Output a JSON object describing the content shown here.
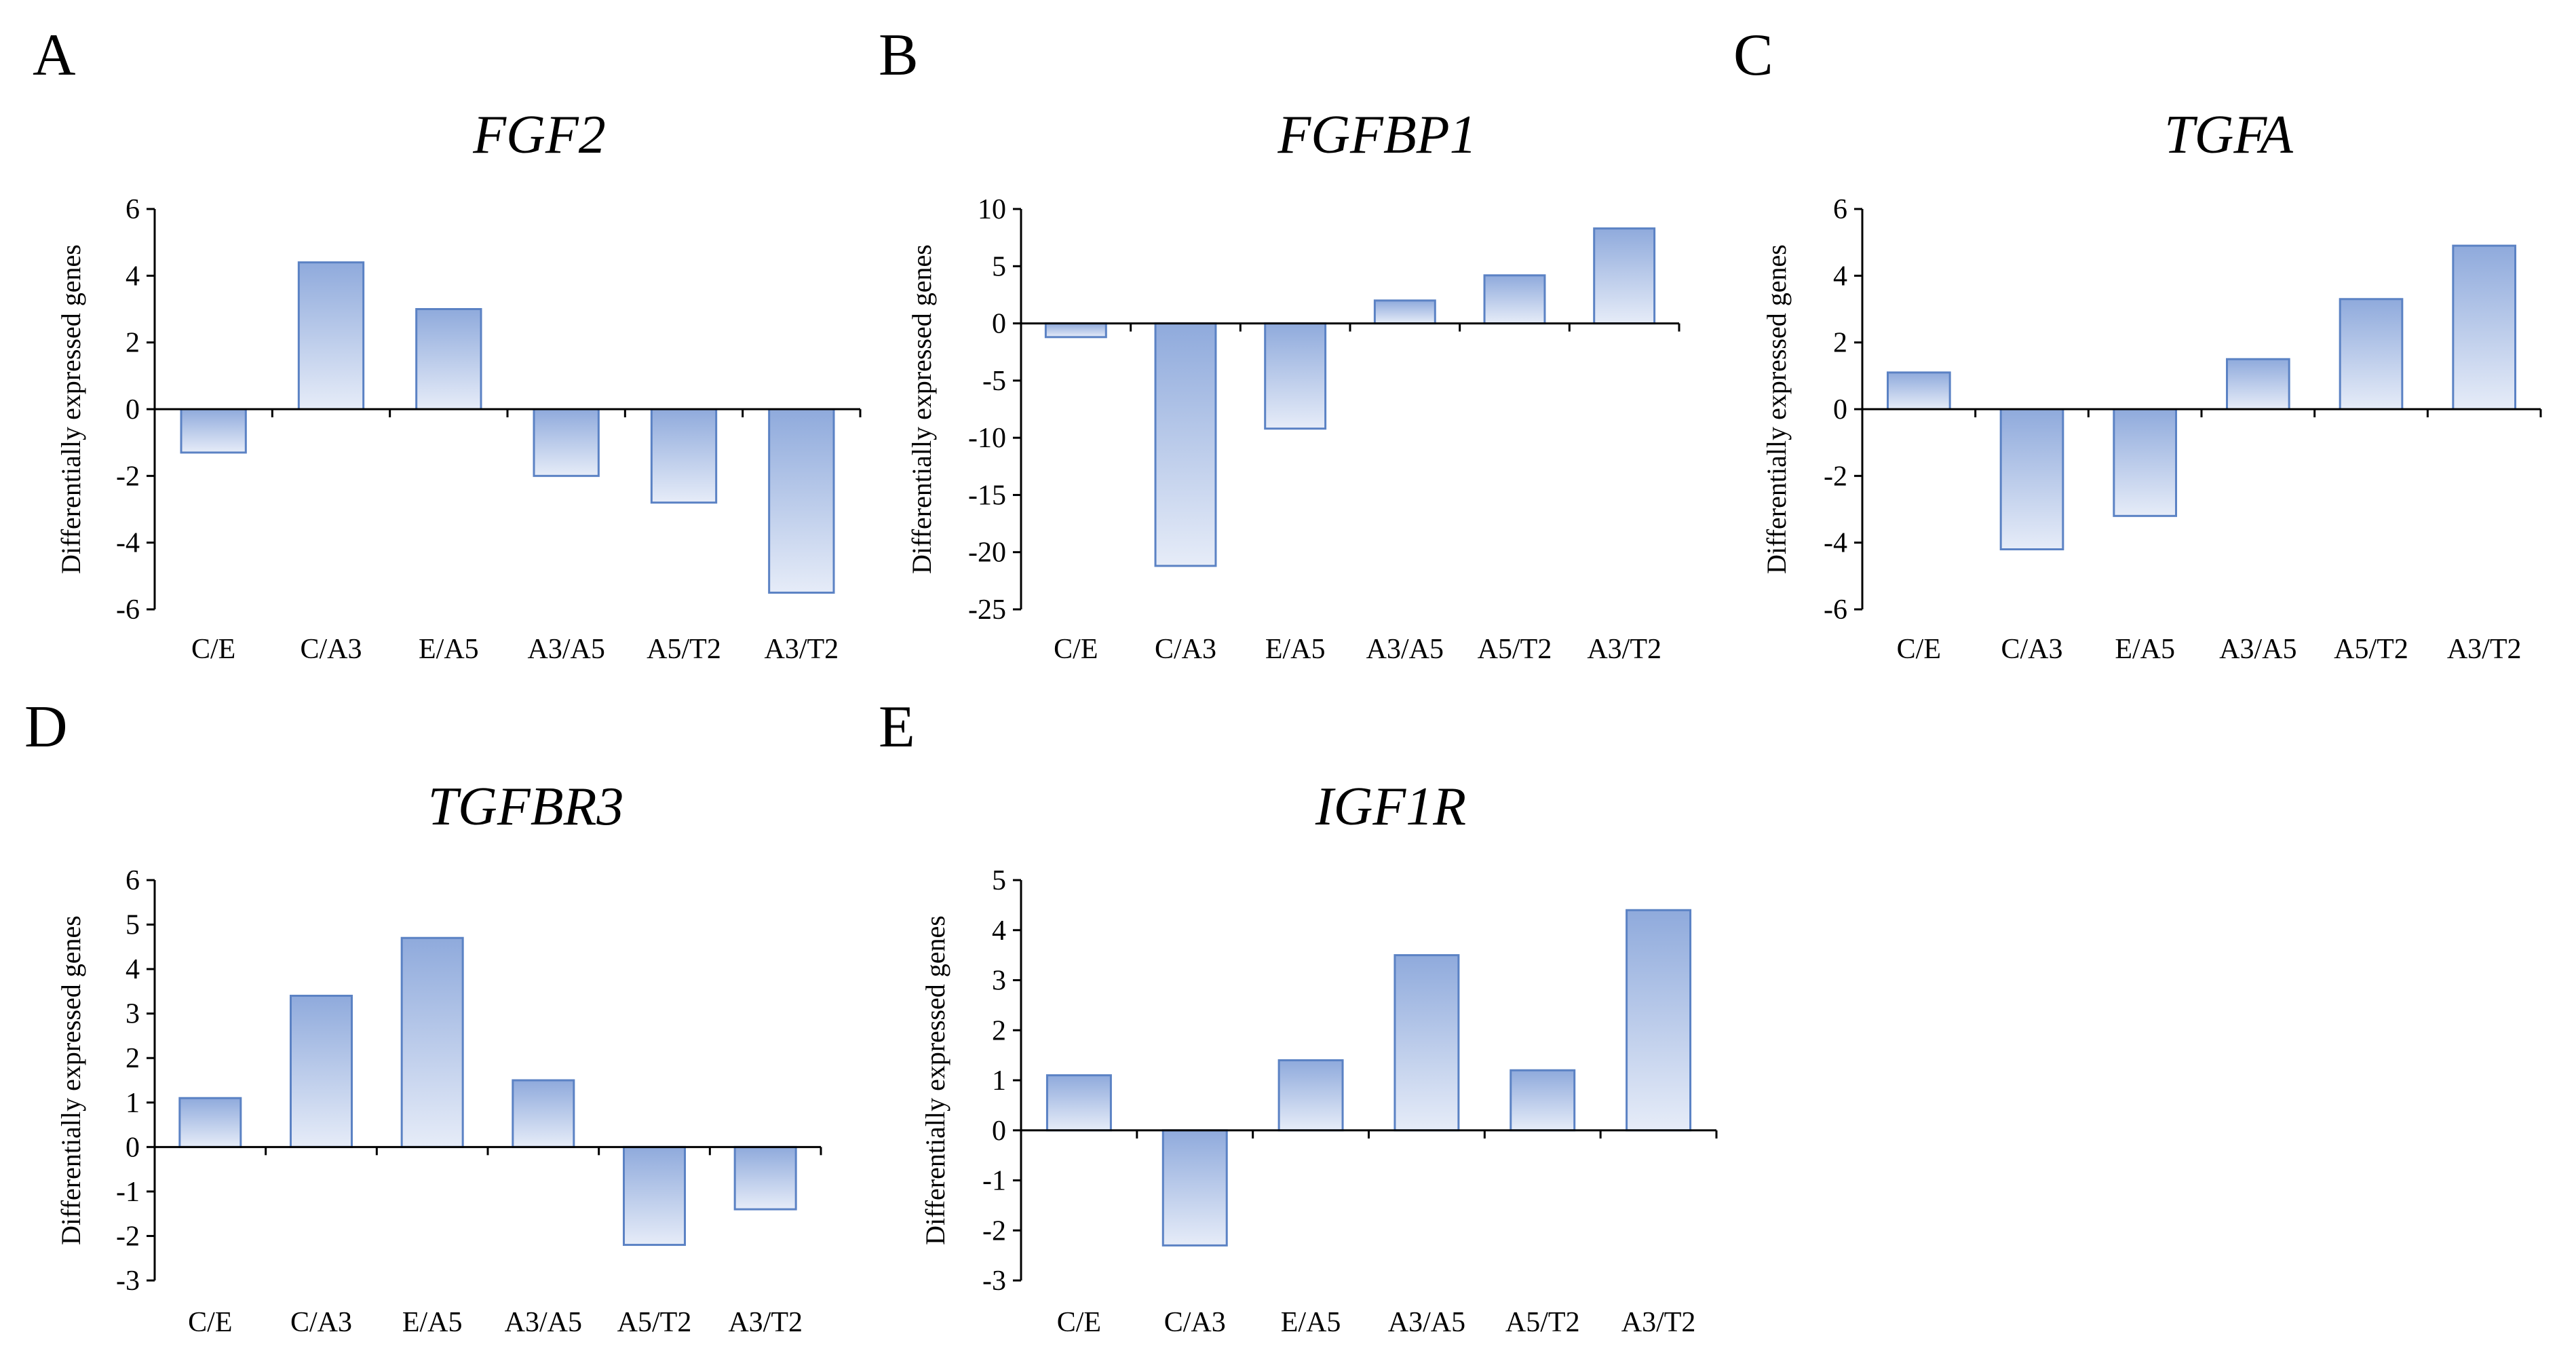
{
  "colors": {
    "bar_dark": "#8faadc",
    "bar_light": "#e6ecf8",
    "bar_stroke": "#5b82c4",
    "axis": "#000000"
  },
  "chart_data": [
    {
      "panel": "A",
      "type": "bar",
      "title": "FGF2",
      "ylabel": "Differentially expressed genes",
      "xlabel": "",
      "categories": [
        "C/E",
        "C/A3",
        "E/A5",
        "A3/A5",
        "A5/T2",
        "A3/T2"
      ],
      "values": [
        -1.3,
        4.4,
        3.0,
        -2.0,
        -2.8,
        -5.5
      ],
      "ylim": [
        -6,
        6
      ],
      "yticks": [
        6,
        4,
        2,
        0,
        -2,
        -4,
        -6
      ]
    },
    {
      "panel": "B",
      "type": "bar",
      "title": "FGFBP1",
      "ylabel": "Differentially expressed genes",
      "xlabel": "",
      "categories": [
        "C/E",
        "C/A3",
        "E/A5",
        "A3/A5",
        "A5/T2",
        "A3/T2"
      ],
      "values": [
        -1.2,
        -21.2,
        -9.2,
        2.0,
        4.2,
        8.3
      ],
      "ylim": [
        -25,
        10
      ],
      "yticks": [
        10,
        5,
        0,
        -5,
        -10,
        -15,
        -20,
        -25
      ]
    },
    {
      "panel": "C",
      "type": "bar",
      "title": "TGFA",
      "ylabel": "Differentially expressed genes",
      "xlabel": "",
      "categories": [
        "C/E",
        "C/A3",
        "E/A5",
        "A3/A5",
        "A5/T2",
        "A3/T2"
      ],
      "values": [
        1.1,
        -4.2,
        -3.2,
        1.5,
        3.3,
        4.9
      ],
      "ylim": [
        -6,
        6
      ],
      "yticks": [
        6,
        4,
        2,
        0,
        -2,
        -4,
        -6
      ]
    },
    {
      "panel": "D",
      "type": "bar",
      "title": "TGFBR3",
      "ylabel": "Differentially expressed genes",
      "xlabel": "",
      "categories": [
        "C/E",
        "C/A3",
        "E/A5",
        "A3/A5",
        "A5/T2",
        "A3/T2"
      ],
      "values": [
        1.1,
        3.4,
        4.7,
        1.5,
        -2.2,
        -1.4
      ],
      "ylim": [
        -3,
        6
      ],
      "yticks": [
        6,
        5,
        4,
        3,
        2,
        1,
        0,
        -1,
        -2,
        -3
      ]
    },
    {
      "panel": "E",
      "type": "bar",
      "title": "IGF1R",
      "ylabel": "Differentially expressed genes",
      "xlabel": "",
      "categories": [
        "C/E",
        "C/A3",
        "E/A5",
        "A3/A5",
        "A5/T2",
        "A3/T2"
      ],
      "values": [
        1.1,
        -2.3,
        1.4,
        3.5,
        1.2,
        4.4
      ],
      "ylim": [
        -3,
        5
      ],
      "yticks": [
        5,
        4,
        3,
        2,
        1,
        0,
        -1,
        -2,
        -3
      ]
    }
  ]
}
